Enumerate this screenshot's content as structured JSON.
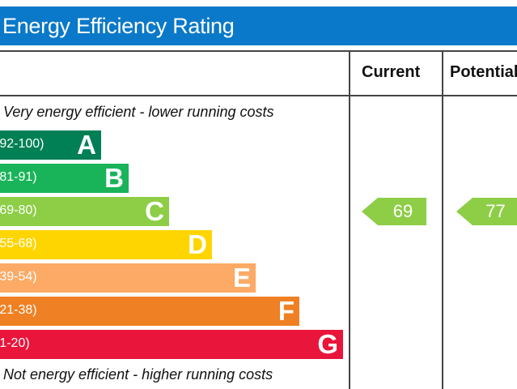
{
  "header": {
    "title": "Energy Efficiency Rating"
  },
  "columns": {
    "current_label": "Current",
    "potential_label": "Potential"
  },
  "captions": {
    "top": "Very energy efficient - lower running costs",
    "bottom": "Not energy efficient - higher running costs"
  },
  "chart_data": {
    "type": "bar",
    "title": "Energy Efficiency Rating",
    "bands": [
      {
        "range": "(92-100)",
        "letter": "A",
        "color": "#008054"
      },
      {
        "range": "(81-91)",
        "letter": "B",
        "color": "#19b459"
      },
      {
        "range": "(69-80)",
        "letter": "C",
        "color": "#8dce46"
      },
      {
        "range": "(55-68)",
        "letter": "D",
        "color": "#ffd500"
      },
      {
        "range": "(39-54)",
        "letter": "E",
        "color": "#fcaa65"
      },
      {
        "range": "(21-38)",
        "letter": "F",
        "color": "#ef8023"
      },
      {
        "range": "(1-20)",
        "letter": "G",
        "color": "#e9153b"
      }
    ],
    "current": {
      "value": 69,
      "band": "C",
      "color": "#8dce46"
    },
    "potential": {
      "value": 77,
      "band": "C",
      "color": "#8dce46"
    }
  }
}
